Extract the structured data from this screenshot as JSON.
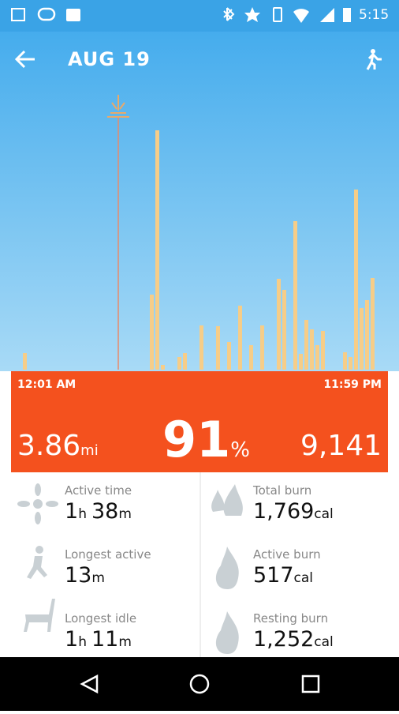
{
  "status_bar": {
    "time": "5:15"
  },
  "header": {
    "title": "AUG 19"
  },
  "chart_data": {
    "type": "bar",
    "start_label": "12:01 AM",
    "end_label": "11:59 PM",
    "color": "#f6cd88",
    "values": [
      21,
      0,
      0,
      0,
      0,
      0,
      0,
      0,
      0,
      0,
      0,
      0,
      0,
      0,
      0,
      0,
      0,
      0,
      0,
      0,
      0,
      0,
      0,
      95,
      303,
      6,
      0,
      0,
      16,
      21,
      0,
      0,
      56,
      0,
      0,
      55,
      0,
      35,
      0,
      81,
      0,
      31,
      0,
      56,
      0,
      0,
      115,
      101,
      0,
      188,
      20,
      63,
      51,
      31,
      49,
      0,
      0,
      0,
      22,
      16,
      228,
      78,
      88,
      116,
      0
    ]
  },
  "summary": {
    "distance": {
      "value": "3.86",
      "unit": "mi"
    },
    "goal": {
      "value": "91",
      "unit": "%"
    },
    "steps": "9,141"
  },
  "stats": [
    {
      "label": "Active time",
      "value": [
        {
          "n": "1",
          "u": "h"
        },
        {
          "n": "38",
          "u": "m"
        }
      ]
    },
    {
      "label": "Total burn",
      "value": [
        {
          "n": "1,769",
          "u": "cal"
        }
      ]
    },
    {
      "label": "Longest active",
      "value": [
        {
          "n": "13",
          "u": "m"
        }
      ]
    },
    {
      "label": "Active burn",
      "value": [
        {
          "n": "517",
          "u": "cal"
        }
      ]
    },
    {
      "label": "Longest idle",
      "value": [
        {
          "n": "1",
          "u": "h"
        },
        {
          "n": "11",
          "u": "m"
        }
      ]
    },
    {
      "label": "Resting burn",
      "value": [
        {
          "n": "1,252",
          "u": "cal"
        }
      ]
    }
  ]
}
